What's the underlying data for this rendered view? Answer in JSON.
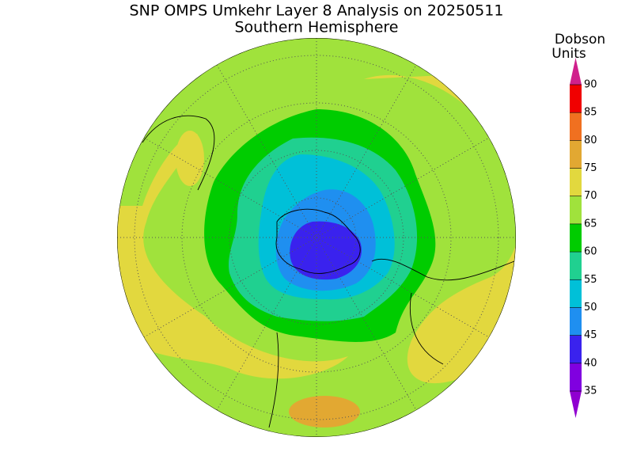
{
  "header": {
    "title": "SNP OMPS Umkehr Layer 8 Analysis on 20250511",
    "subtitle": "Southern Hemisphere"
  },
  "colorbar": {
    "label": [
      "Dobson",
      "Units"
    ],
    "ticks": [
      35,
      40,
      45,
      50,
      55,
      60,
      65,
      70,
      75,
      80,
      85,
      90
    ],
    "colors": [
      "#8000e0",
      "#3a22ee",
      "#1f8ff0",
      "#00c0d8",
      "#20d090",
      "#00cc00",
      "#a0e23c",
      "#e2d83e",
      "#e2a832",
      "#f07020",
      "#f00000"
    ],
    "under_color": "#9000d0",
    "over_color": "#d0208c"
  }
}
